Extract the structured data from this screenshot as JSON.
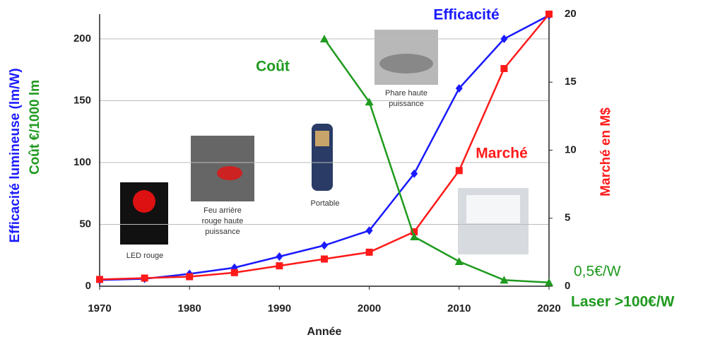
{
  "chart_data": {
    "type": "line",
    "x": [
      1970,
      1975,
      1980,
      1985,
      1990,
      1995,
      2000,
      2005,
      2010,
      2015,
      2020
    ],
    "xlim": [
      1970,
      2020
    ],
    "xticks": [
      1970,
      1980,
      1990,
      2000,
      2010,
      2020
    ],
    "ylim": [
      0,
      220
    ],
    "yticks": [
      0,
      50,
      100,
      150,
      200
    ],
    "y2lim": [
      0,
      20
    ],
    "y2ticks": [
      0,
      5,
      10,
      15,
      20
    ],
    "grid": true,
    "x_label": "Année",
    "y_label": "Efficacité lumineuse (lm/W)",
    "y_label_2": "Coût €/1000 lm",
    "y2_label": "Marché en M$",
    "series": [
      {
        "name": "Efficacité",
        "color": "#1a1aff",
        "marker": "diamond",
        "values": [
          5,
          6,
          10,
          15,
          24,
          33,
          45,
          91,
          160,
          200,
          219
        ]
      },
      {
        "name": "Marché",
        "color": "#ff1a1a",
        "marker": "square",
        "axis": "y2",
        "values": [
          0.5,
          0.6,
          0.7,
          1.0,
          1.5,
          2.0,
          2.5,
          4.0,
          8.5,
          16,
          20
        ]
      },
      {
        "name": "Coût",
        "color": "#1f9a1f",
        "marker": "triangle",
        "values": [
          null,
          null,
          null,
          null,
          null,
          200,
          149,
          40,
          20,
          5,
          3
        ]
      }
    ],
    "annotations": [
      "0,5€/W",
      "Laser >100€/W"
    ],
    "captions": [
      [
        "LED rouge"
      ],
      [
        "Feu arrière",
        "rouge haute",
        "puissance"
      ],
      [
        "Portable"
      ],
      [
        "Phare haute",
        "puissance"
      ]
    ]
  }
}
